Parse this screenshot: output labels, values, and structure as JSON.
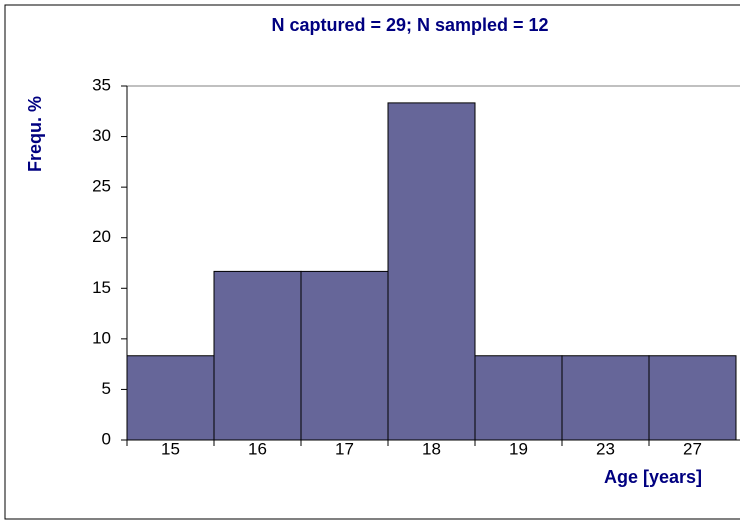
{
  "chart_data": {
    "type": "bar",
    "title": "N captured = 29;  N sampled = 12",
    "y_label": "Frequ. %",
    "x_label": "Age [years]",
    "categories": [
      "15",
      "16",
      "17",
      "18",
      "19",
      "23",
      "27"
    ],
    "values": [
      8.33,
      16.67,
      16.67,
      33.33,
      8.33,
      8.33,
      8.33
    ],
    "color": "#666699",
    "ylim": [
      0,
      35
    ],
    "yticks": [
      0,
      5,
      10,
      15,
      20,
      25,
      30,
      35
    ],
    "grid": false
  }
}
